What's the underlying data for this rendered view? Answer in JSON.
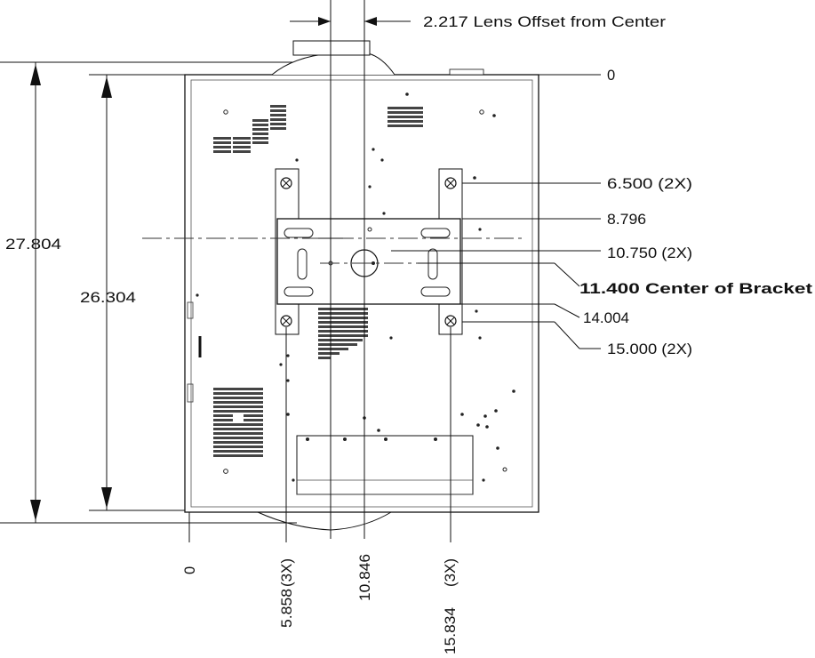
{
  "dimensions": {
    "lens_offset": "2.217 Lens Offset from Center",
    "overall_height": "27.804",
    "inner_height": "26.304",
    "top_zero": "0",
    "right_labels": [
      "6.500  (2X)",
      "8.796",
      "10.750  (2X)",
      "11.400 Center of Bracket",
      "14.004",
      "15.000  (2X)"
    ],
    "bottom_labels": [
      "0",
      "5.858",
      "(3X)",
      "10.846",
      "(3X)",
      "15.834"
    ]
  }
}
